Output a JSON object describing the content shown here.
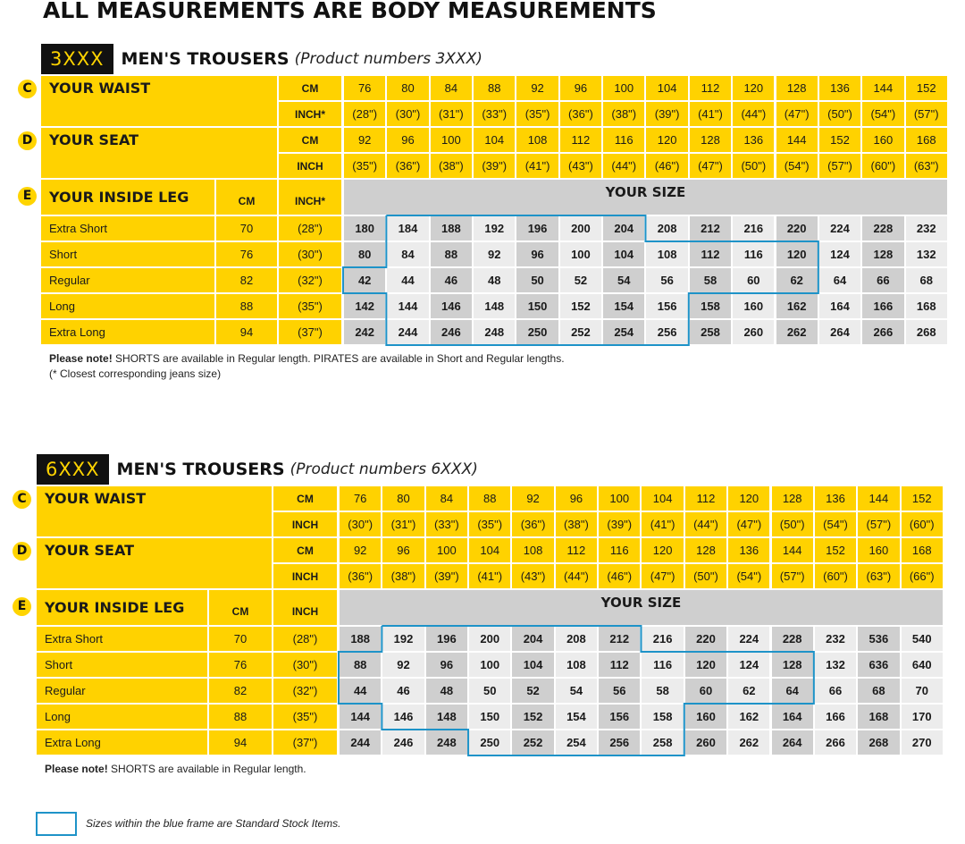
{
  "main_title": "ALL MEASUREMENTS ARE BODY MEASUREMENTS",
  "sections": [
    {
      "code": "3XXX",
      "title": "MEN'S TROUSERS",
      "subtitle": "(Product numbers 3XXX)",
      "waist": {
        "letter": "C",
        "label": "YOUR WAIST",
        "unit_cm": "CM",
        "unit_inch": "INCH*",
        "cm": [
          "76",
          "80",
          "84",
          "88",
          "92",
          "96",
          "100",
          "104",
          "112",
          "120",
          "128",
          "136",
          "144",
          "152"
        ],
        "inch": [
          "(28\")",
          "(30\")",
          "(31\")",
          "(33\")",
          "(35\")",
          "(36\")",
          "(38\")",
          "(39\")",
          "(41\")",
          "(44\")",
          "(47\")",
          "(50\")",
          "(54\")",
          "(57\")"
        ]
      },
      "seat": {
        "letter": "D",
        "label": "YOUR SEAT",
        "unit_cm": "CM",
        "unit_inch": "INCH",
        "cm": [
          "92",
          "96",
          "100",
          "104",
          "108",
          "112",
          "116",
          "120",
          "128",
          "136",
          "144",
          "152",
          "160",
          "168"
        ],
        "inch": [
          "(35\")",
          "(36\")",
          "(38\")",
          "(39\")",
          "(41\")",
          "(43\")",
          "(44\")",
          "(46\")",
          "(47\")",
          "(50\")",
          "(54\")",
          "(57\")",
          "(60\")",
          "(63\")"
        ]
      },
      "inside_leg": {
        "letter": "E",
        "label": "YOUR INSIDE LEG",
        "unit_cm": "CM",
        "unit_inch": "INCH*",
        "your_size": "YOUR SIZE",
        "rows": [
          {
            "label": "Extra Short",
            "cm": "70",
            "inch": "(28\")",
            "sizes": [
              "180",
              "184",
              "188",
              "192",
              "196",
              "200",
              "204",
              "208",
              "212",
              "216",
              "220",
              "224",
              "228",
              "232"
            ]
          },
          {
            "label": "Short",
            "cm": "76",
            "inch": "(30\")",
            "sizes": [
              "80",
              "84",
              "88",
              "92",
              "96",
              "100",
              "104",
              "108",
              "112",
              "116",
              "120",
              "124",
              "128",
              "132"
            ]
          },
          {
            "label": "Regular",
            "cm": "82",
            "inch": "(32\")",
            "sizes": [
              "42",
              "44",
              "46",
              "48",
              "50",
              "52",
              "54",
              "56",
              "58",
              "60",
              "62",
              "64",
              "66",
              "68"
            ]
          },
          {
            "label": "Long",
            "cm": "88",
            "inch": "(35\")",
            "sizes": [
              "142",
              "144",
              "146",
              "148",
              "150",
              "152",
              "154",
              "156",
              "158",
              "160",
              "162",
              "164",
              "166",
              "168"
            ]
          },
          {
            "label": "Extra Long",
            "cm": "94",
            "inch": "(37\")",
            "sizes": [
              "242",
              "244",
              "246",
              "248",
              "250",
              "252",
              "254",
              "256",
              "258",
              "260",
              "262",
              "264",
              "266",
              "268"
            ]
          }
        ]
      },
      "note_bold": "Please note!",
      "note_text": " SHORTS are available in Regular length. PIRATES are available in Short and Regular lengths.",
      "note2": "(* Closest corresponding jeans size)"
    },
    {
      "code": "6XXX",
      "title": "MEN'S TROUSERS",
      "subtitle": "(Product numbers 6XXX)",
      "waist": {
        "letter": "C",
        "label": "YOUR WAIST",
        "unit_cm": "CM",
        "unit_inch": "INCH",
        "cm": [
          "76",
          "80",
          "84",
          "88",
          "92",
          "96",
          "100",
          "104",
          "112",
          "120",
          "128",
          "136",
          "144",
          "152"
        ],
        "inch": [
          "(30\")",
          "(31\")",
          "(33\")",
          "(35\")",
          "(36\")",
          "(38\")",
          "(39\")",
          "(41\")",
          "(44\")",
          "(47\")",
          "(50\")",
          "(54\")",
          "(57\")",
          "(60\")"
        ]
      },
      "seat": {
        "letter": "D",
        "label": "YOUR SEAT",
        "unit_cm": "CM",
        "unit_inch": "INCH",
        "cm": [
          "92",
          "96",
          "100",
          "104",
          "108",
          "112",
          "116",
          "120",
          "128",
          "136",
          "144",
          "152",
          "160",
          "168"
        ],
        "inch": [
          "(36\")",
          "(38\")",
          "(39\")",
          "(41\")",
          "(43\")",
          "(44\")",
          "(46\")",
          "(47\")",
          "(50\")",
          "(54\")",
          "(57\")",
          "(60\")",
          "(63\")",
          "(66\")"
        ]
      },
      "inside_leg": {
        "letter": "E",
        "label": "YOUR INSIDE LEG",
        "unit_cm": "CM",
        "unit_inch": "INCH",
        "your_size": "YOUR SIZE",
        "rows": [
          {
            "label": "Extra Short",
            "cm": "70",
            "inch": "(28\")",
            "sizes": [
              "188",
              "192",
              "196",
              "200",
              "204",
              "208",
              "212",
              "216",
              "220",
              "224",
              "228",
              "232",
              "536",
              "540"
            ]
          },
          {
            "label": "Short",
            "cm": "76",
            "inch": "(30\")",
            "sizes": [
              "88",
              "92",
              "96",
              "100",
              "104",
              "108",
              "112",
              "116",
              "120",
              "124",
              "128",
              "132",
              "636",
              "640"
            ]
          },
          {
            "label": "Regular",
            "cm": "82",
            "inch": "(32\")",
            "sizes": [
              "44",
              "46",
              "48",
              "50",
              "52",
              "54",
              "56",
              "58",
              "60",
              "62",
              "64",
              "66",
              "68",
              "70"
            ]
          },
          {
            "label": "Long",
            "cm": "88",
            "inch": "(35\")",
            "sizes": [
              "144",
              "146",
              "148",
              "150",
              "152",
              "154",
              "156",
              "158",
              "160",
              "162",
              "164",
              "166",
              "168",
              "170"
            ]
          },
          {
            "label": "Extra Long",
            "cm": "94",
            "inch": "(37\")",
            "sizes": [
              "244",
              "246",
              "248",
              "250",
              "252",
              "254",
              "256",
              "258",
              "260",
              "262",
              "264",
              "266",
              "268",
              "270"
            ]
          }
        ]
      },
      "note_bold": "Please note!",
      "note_text": " SHORTS are available in Regular length.",
      "note2": ""
    }
  ],
  "legend": "Sizes within the blue frame are Standard Stock Items.",
  "colors": {
    "yellow": "#ffd200",
    "dark": "#111111",
    "frame": "#1e93c8",
    "grey": "#cfcfcf",
    "light": "#ececec"
  }
}
